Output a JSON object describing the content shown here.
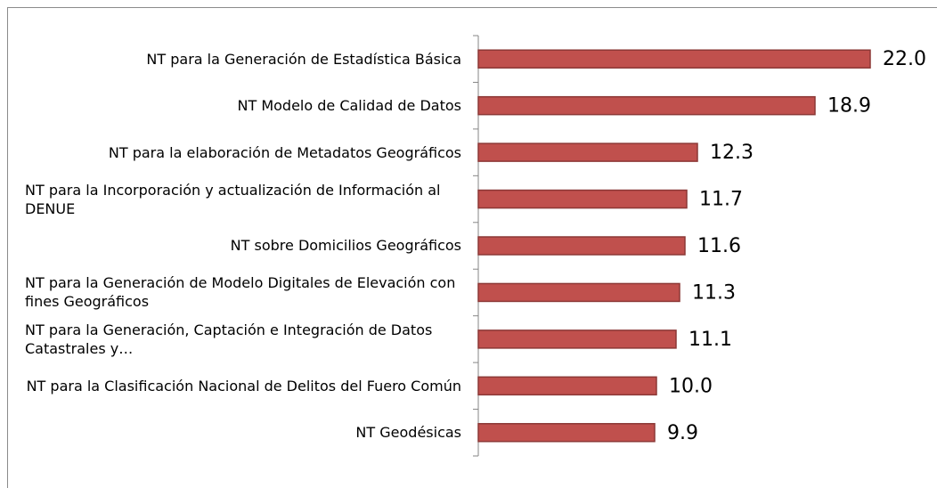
{
  "chart_data": {
    "type": "bar",
    "orientation": "horizontal",
    "categories": [
      "NT para la Generación de Estadística Básica",
      "NT Modelo de Calidad de Datos",
      "NT para la elaboración de Metadatos Geográficos",
      "NT para la Incorporación y actualización de Información al DENUE",
      "NT sobre Domicilios Geográficos",
      "NT para la Generación de Modelo Digitales de Elevación con fines Geográficos",
      "NT para la Generación, Captación e Integración de Datos Catastrales y…",
      "NT para la Clasificación Nacional de Delitos del Fuero Común",
      "NT Geodésicas"
    ],
    "values": [
      22.0,
      18.9,
      12.3,
      11.7,
      11.6,
      11.3,
      11.1,
      10.0,
      9.9
    ],
    "value_labels": [
      "22.0",
      "18.9",
      "12.3",
      "11.7",
      "11.6",
      "11.3",
      "11.1",
      "10.0",
      "9.9"
    ],
    "color": "#c0504d"
  }
}
